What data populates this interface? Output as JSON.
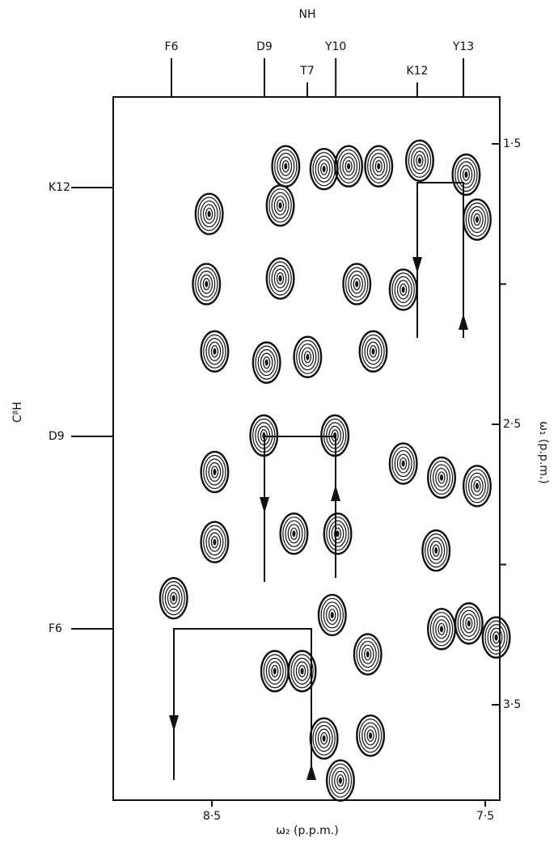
{
  "chart_data": {
    "type": "contour",
    "title": "NH",
    "x_label": "ω₂ (p.p.m.)",
    "y_label": "ω₁ (p.p.m.)",
    "left_label": "CᵝH",
    "xlim": [
      8.861,
      7.447
    ],
    "ylim": [
      1.333,
      3.84
    ],
    "xticks": [
      {
        "value": 8.5,
        "label": "8·5"
      },
      {
        "value": 7.5,
        "label": "7·5"
      }
    ],
    "yticks": [
      {
        "value": 1.5,
        "label": "1·5"
      },
      {
        "value": 2.5,
        "label": "2·5"
      },
      {
        "value": 3.5,
        "label": "3·5"
      }
    ],
    "yminorticks": [
      2,
      3
    ],
    "top_labels": [
      {
        "label": "F6",
        "x": 8.648
      },
      {
        "label": "D9",
        "x": 8.308
      },
      {
        "label": "T7",
        "x": 8.151
      },
      {
        "label": "Y10",
        "x": 8.047
      },
      {
        "label": "K12",
        "x": 7.749
      },
      {
        "label": "Y13",
        "x": 7.58
      }
    ],
    "left_labels": [
      {
        "label": "K12",
        "y": 1.656
      },
      {
        "label": "D9",
        "y": 2.543
      },
      {
        "label": "F6",
        "y": 3.229
      }
    ],
    "color": "#111111",
    "x": [
      8.23,
      8.09,
      8.0,
      7.89,
      7.74,
      7.53,
      7.57,
      8.25,
      8.51,
      8.52,
      8.49,
      8.25,
      8.3,
      8.15,
      7.91,
      7.8,
      8.31,
      8.05,
      8.49,
      7.8,
      7.66,
      7.53,
      8.49,
      8.04,
      8.2,
      7.68,
      8.64,
      8.06,
      7.66,
      7.56,
      7.46,
      8.27,
      8.17,
      7.93,
      8.09,
      7.92,
      8.03,
      7.97
    ],
    "y": [
      1.58,
      1.59,
      1.58,
      1.58,
      1.56,
      1.77,
      1.61,
      1.72,
      1.75,
      2.0,
      2.24,
      1.98,
      2.28,
      2.26,
      2.24,
      2.02,
      2.54,
      2.54,
      2.67,
      2.64,
      2.69,
      2.72,
      2.92,
      2.89,
      2.89,
      2.95,
      3.12,
      3.18,
      3.23,
      3.21,
      3.26,
      3.38,
      3.38,
      3.32,
      3.62,
      3.61,
      3.77,
      2.0
    ]
  }
}
